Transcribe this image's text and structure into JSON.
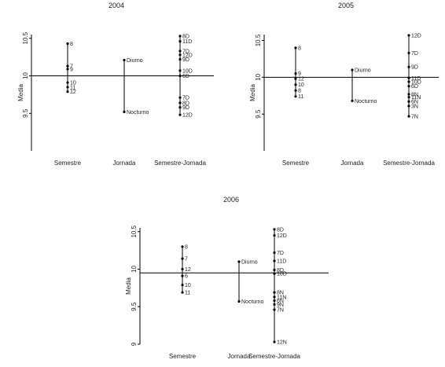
{
  "chart_data": [
    {
      "type": "scatter",
      "title": "2004",
      "ylabel": "Media",
      "categories": [
        "Semestre",
        "Jornada",
        "Semestre-Jornada"
      ],
      "reference_line": 10,
      "ylim": [
        9.0,
        10.55
      ],
      "yticks": [
        "10.5",
        "10",
        "9.5"
      ],
      "groups": [
        {
          "category": "Semestre",
          "points": [
            {
              "label": "8",
              "value": 10.43
            },
            {
              "label": "7",
              "value": 10.13
            },
            {
              "label": "9",
              "value": 10.09
            },
            {
              "label": "10",
              "value": 9.91
            },
            {
              "label": "11",
              "value": 9.85
            },
            {
              "label": "12",
              "value": 9.79
            }
          ]
        },
        {
          "category": "Jornada",
          "points": [
            {
              "label": "Diurno",
              "value": 10.21
            },
            {
              "label": "Nocturno",
              "value": 9.52
            }
          ]
        },
        {
          "category": "Semestre-Jornada",
          "points": [
            {
              "label": "8D",
              "value": 10.53
            },
            {
              "label": "11D",
              "value": 10.46
            },
            {
              "label": "7D",
              "value": 10.33
            },
            {
              "label": "12D",
              "value": 10.28
            },
            {
              "label": "9D",
              "value": 10.22
            },
            {
              "label": "10D",
              "value": 10.07
            },
            {
              "label": "6D",
              "value": 10.0
            },
            {
              "label": "7D",
              "value": 9.71
            },
            {
              "label": "8D",
              "value": 9.64
            },
            {
              "label": "9D",
              "value": 9.58
            },
            {
              "label": "12D",
              "value": 9.48
            }
          ]
        }
      ]
    },
    {
      "type": "scatter",
      "title": "2005",
      "ylabel": "Media",
      "categories": [
        "Semestre",
        "Jornada",
        "Semestre-Jornada"
      ],
      "reference_line": 10,
      "ylim": [
        9.0,
        10.58
      ],
      "yticks": [
        "10.5",
        "10",
        "9.5"
      ],
      "groups": [
        {
          "category": "Semestre",
          "points": [
            {
              "label": "8",
              "value": 10.4
            },
            {
              "label": "9",
              "value": 10.05
            },
            {
              "label": "12",
              "value": 9.98
            },
            {
              "label": "10",
              "value": 9.9
            },
            {
              "label": "8",
              "value": 9.82
            },
            {
              "label": "11",
              "value": 9.74
            }
          ]
        },
        {
          "category": "Jornada",
          "points": [
            {
              "label": "Diurno",
              "value": 10.1
            },
            {
              "label": "Nocturno",
              "value": 9.68
            }
          ]
        },
        {
          "category": "Semestre-Jornada",
          "points": [
            {
              "label": "12D",
              "value": 10.57
            },
            {
              "label": "7D",
              "value": 10.33
            },
            {
              "label": "9D",
              "value": 10.14
            },
            {
              "label": "11D",
              "value": 9.99
            },
            {
              "label": "10D",
              "value": 9.94
            },
            {
              "label": "6D",
              "value": 9.88
            },
            {
              "label": "8N",
              "value": 9.77
            },
            {
              "label": "11N",
              "value": 9.73
            },
            {
              "label": "6N",
              "value": 9.67
            },
            {
              "label": "3N",
              "value": 9.61
            },
            {
              "label": "7N",
              "value": 9.47
            }
          ]
        }
      ]
    },
    {
      "type": "scatter",
      "title": "2006",
      "ylabel": "Media",
      "categories": [
        "Semestre",
        "Jornada",
        "Semestre-Jornada"
      ],
      "reference_line": 9.95,
      "ylim": [
        9.0,
        10.55
      ],
      "yticks": [
        "10.5",
        "10",
        "9.5",
        "9"
      ],
      "groups": [
        {
          "category": "Semestre",
          "points": [
            {
              "label": "8",
              "value": 10.3
            },
            {
              "label": "7",
              "value": 10.14
            },
            {
              "label": "12",
              "value": 10.0
            },
            {
              "label": "6",
              "value": 9.91
            },
            {
              "label": "10",
              "value": 9.79
            },
            {
              "label": "11",
              "value": 9.69
            }
          ]
        },
        {
          "category": "Jornada",
          "points": [
            {
              "label": "Diurno",
              "value": 10.1
            },
            {
              "label": "Nocturno",
              "value": 9.57
            }
          ]
        },
        {
          "category": "Semestre-Jornada",
          "points": [
            {
              "label": "8D",
              "value": 10.53
            },
            {
              "label": "12D",
              "value": 10.45
            },
            {
              "label": "7D",
              "value": 10.22
            },
            {
              "label": "11D",
              "value": 10.11
            },
            {
              "label": "8D",
              "value": 9.99
            },
            {
              "label": "10D",
              "value": 9.94
            },
            {
              "label": "8N",
              "value": 9.69
            },
            {
              "label": "11N",
              "value": 9.63
            },
            {
              "label": "6N",
              "value": 9.58
            },
            {
              "label": "9N",
              "value": 9.53
            },
            {
              "label": "7N",
              "value": 9.46
            },
            {
              "label": "12N",
              "value": 9.03
            }
          ]
        }
      ]
    }
  ]
}
